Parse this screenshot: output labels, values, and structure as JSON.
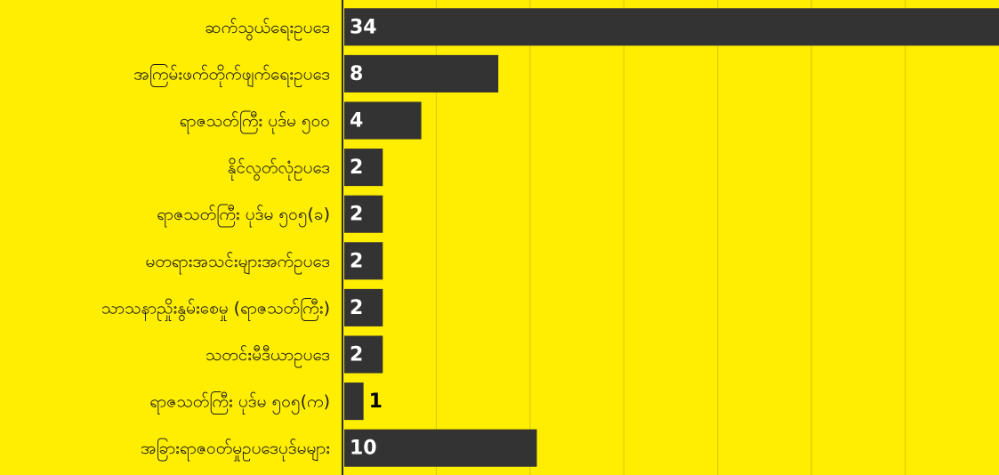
{
  "chart_data": {
    "type": "bar",
    "orientation": "horizontal",
    "categories": [
      "ဆက်သွယ်ရေးဥပဒေ",
      "အကြမ်းဖက်တိုက်ဖျက်ရေးဥပဒေ",
      "ရာဇသတ်ကြီး ပုဒ်မ ၅၀၀",
      "နိုင်လွတ်လုံဥပဒေ",
      "ရာဇသတ်ကြီး ပုဒ်မ ၅၀၅(ခ)",
      "မတရားအသင်းများအက်ဥပဒေ",
      "သာသနာညှိုးနွမ်းစေမှု (ရာဇသတ်ကြီး)",
      "သတင်းမီဒီယာဥပဒေ",
      "ရာဇသတ်ကြီး ပုဒ်မ ၅၀၅(က)",
      "အခြားရာဇဝတ်မှုဥပဒေပုဒ်မများ"
    ],
    "values": [
      34,
      8,
      4,
      2,
      2,
      2,
      2,
      2,
      1,
      10
    ],
    "value_labels": [
      "34",
      "8",
      "4",
      "2",
      "2",
      "2",
      "2",
      "2",
      "1",
      "10"
    ],
    "xlim": [
      0,
      34
    ],
    "grid": true,
    "legend": "none",
    "colors": {
      "background": "#FFEE00",
      "bar": "#333333",
      "grid": "#D9C800",
      "label_inside": "#FFFFFF",
      "label_outside": "#000000"
    }
  }
}
